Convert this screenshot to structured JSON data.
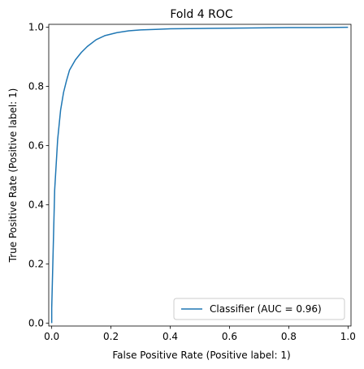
{
  "chart_data": {
    "type": "line",
    "title": "Fold 4 ROC",
    "xlabel": "False Positive Rate (Positive label: 1)",
    "ylabel": "True Positive Rate (Positive label: 1)",
    "xlim": [
      -0.01,
      1.01
    ],
    "ylim": [
      -0.01,
      1.01
    ],
    "xticks": [
      0.0,
      0.2,
      0.4,
      0.6,
      0.8,
      1.0
    ],
    "yticks": [
      0.0,
      0.2,
      0.4,
      0.6,
      0.8,
      1.0
    ],
    "xtick_labels": [
      "0.0",
      "0.2",
      "0.4",
      "0.6",
      "0.8",
      "1.0"
    ],
    "ytick_labels": [
      "0.0",
      "0.2",
      "0.4",
      "0.6",
      "0.8",
      "1.0"
    ],
    "grid": false,
    "legend_position": "lower-right",
    "series": [
      {
        "name": "Classifier (AUC = 0.96)",
        "color": "#1f77b4",
        "x": [
          0.0,
          0.0,
          0.005,
          0.01,
          0.02,
          0.03,
          0.04,
          0.05,
          0.06,
          0.08,
          0.1,
          0.12,
          0.15,
          0.18,
          0.22,
          0.26,
          0.3,
          0.35,
          0.4,
          0.5,
          0.6,
          0.7,
          0.8,
          0.9,
          1.0
        ],
        "y": [
          0.0,
          0.05,
          0.25,
          0.45,
          0.62,
          0.72,
          0.78,
          0.82,
          0.855,
          0.89,
          0.915,
          0.935,
          0.958,
          0.972,
          0.982,
          0.988,
          0.991,
          0.993,
          0.995,
          0.996,
          0.997,
          0.998,
          0.999,
          0.999,
          1.0
        ]
      }
    ]
  }
}
